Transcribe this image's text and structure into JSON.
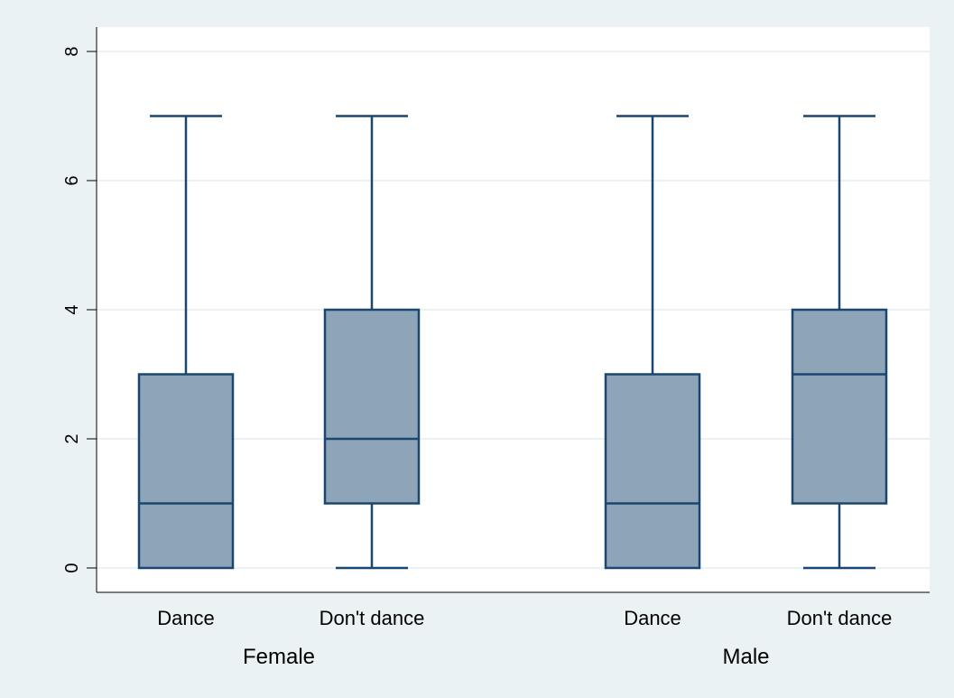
{
  "chart_data": {
    "type": "box",
    "title": "",
    "xlabel": "",
    "ylabel": "",
    "ylim": [
      0,
      8
    ],
    "yticks": [
      0,
      2,
      4,
      6,
      8
    ],
    "grid": true,
    "colors": {
      "background": "#eaf2f3",
      "plot_background": "#ffffff",
      "box_fill": "#8ea4b8",
      "box_stroke": "#1a476f",
      "gridline": "#eaf2f3",
      "axis": "#000000"
    },
    "groups": [
      {
        "label": "Female",
        "boxes": [
          {
            "label": "Dance",
            "min": 0,
            "q1": 0,
            "median": 1,
            "q3": 3,
            "max": 7
          },
          {
            "label": "Don't dance",
            "min": 0,
            "q1": 1,
            "median": 2,
            "q3": 4,
            "max": 7
          }
        ]
      },
      {
        "label": "Male",
        "boxes": [
          {
            "label": "Dance",
            "min": 0,
            "q1": 0,
            "median": 1,
            "q3": 3,
            "max": 7
          },
          {
            "label": "Don't dance",
            "min": 0,
            "q1": 1,
            "median": 3,
            "q3": 4,
            "max": 7
          }
        ]
      }
    ]
  }
}
